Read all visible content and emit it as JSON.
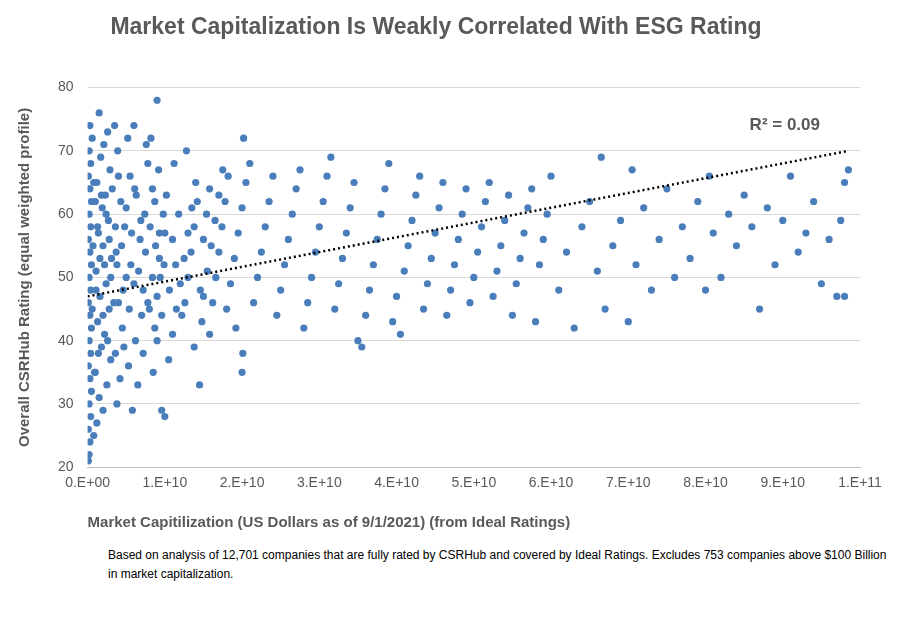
{
  "chart_data": {
    "type": "scatter",
    "title": "Market Capitalization Is Weakly Correlated With ESG Rating",
    "x_label": "Market Capitilization (US Dollars as of 9/1/2021) (from Ideal Ratings)",
    "y_label": "Overall CSRHub Rating (equal weighted profile)",
    "annotations": [
      "R² = 0.09"
    ],
    "footnote": "Based on analysis of 12,701 companies that are fully rated by CSRHub and covered by Ideal Ratings. Excludes 753 companies above $100 Billion in market capitalization.",
    "xlim": [
      0,
      100000000000.0
    ],
    "xticks": [
      {
        "value": 0,
        "label": "0.E+00"
      },
      {
        "value": 10000000000.0,
        "label": "1.E+10"
      },
      {
        "value": 20000000000.0,
        "label": "2.E+10"
      },
      {
        "value": 30000000000.0,
        "label": "3.E+10"
      },
      {
        "value": 40000000000.0,
        "label": "4.E+10"
      },
      {
        "value": 50000000000.0,
        "label": "5.E+10"
      },
      {
        "value": 60000000000.0,
        "label": "6.E+10"
      },
      {
        "value": 70000000000.0,
        "label": "7.E+10"
      },
      {
        "value": 80000000000.0,
        "label": "8.E+10"
      },
      {
        "value": 90000000000.0,
        "label": "9.E+10"
      },
      {
        "value": 100000000000.0,
        "label": "1.E+11"
      }
    ],
    "ylim": [
      20,
      80
    ],
    "yticks": [
      20,
      30,
      40,
      50,
      60,
      70,
      80
    ],
    "grid": "y",
    "series": [
      {
        "type": "scatter",
        "marker": "circle",
        "color": "#4a7ebb",
        "x": [
          100000000.0,
          200000000.0,
          300000000.0,
          100000000.0,
          400000000.0,
          200000000.0,
          500000000.0,
          300000000.0,
          100000000.0,
          400000000.0,
          200000000.0,
          500000000.0,
          300000000.0,
          100000000.0,
          400000000.0,
          200000000.0,
          500000000.0,
          300000000.0,
          100000000.0,
          400000000.0,
          200000000.0,
          500000000.0,
          300000000.0,
          100000000.0,
          400000000.0,
          200000000.0,
          600000000.0,
          300000000.0,
          1500000000.0,
          800000000.0,
          1200000000.0,
          2000000000.0,
          1500000000.0,
          2500000000.0,
          1000000000.0,
          3000000000.0,
          1800000000.0,
          2200000000.0,
          1300000000.0,
          2800000000.0,
          1600000000.0,
          2400000000.0,
          1100000000.0,
          3100000000.0,
          2000000000.0,
          1400000000.0,
          2700000000.0,
          1900000000.0,
          2300000000.0,
          1200000000.0,
          2900000000.0,
          1700000000.0,
          2100000000.0,
          2600000000.0,
          3500000000.0,
          1000000000.0,
          3800000000.0,
          4200000000.0,
          3600000000.0,
          4500000000.0,
          4000000000.0,
          5000000000.0,
          3700000000.0,
          4800000000.0,
          4300000000.0,
          5500000000.0,
          3900000000.0,
          5200000000.0,
          6000000000.0,
          4600000000.0,
          5800000000.0,
          6500000000.0,
          5300000000.0,
          6200000000.0,
          7000000000.0,
          5600000000.0,
          6800000000.0,
          7400000000.0,
          6100000000.0,
          7800000000.0,
          8200000000.0,
          7200000000.0,
          8500000000.0,
          9000000000.0,
          8000000000.0,
          9400000000.0,
          8800000000.0,
          9800000000.0,
          8400000000.0,
          9200000000.0,
          9600000000.0,
          10000000000.0,
          9000000000.0,
          7600000000.0,
          8700000000.0,
          9300000000.0,
          10000000000.0,
          10500000000.0,
          11000000000.0,
          11500000000.0,
          12000000000.0,
          12500000000.0,
          13000000000.0,
          13500000000.0,
          14000000000.0,
          11200000000.0,
          12800000000.0,
          14500000000.0,
          13800000000.0,
          14800000000.0,
          15000000000.0,
          15500000000.0,
          16000000000.0,
          16500000000.0,
          17000000000.0,
          17500000000.0,
          15800000000.0,
          18000000000.0,
          18500000000.0,
          19000000000.0,
          19500000000.0,
          20000000000.0,
          20500000000.0,
          21000000000.0,
          20200000000.0,
          20000000000.0,
          20100000000.0,
          19200000000.0,
          21500000000.0,
          22000000000.0,
          22500000000.0,
          23000000000.0,
          23500000000.0,
          24000000000.0,
          24500000000.0,
          25000000000.0,
          25500000000.0,
          26000000000.0,
          26500000000.0,
          27000000000.0,
          27500000000.0,
          28000000000.0,
          28500000000.0,
          29000000000.0,
          29500000000.0,
          30000000000.0,
          30500000000.0,
          31000000000.0,
          31500000000.0,
          32000000000.0,
          32500000000.0,
          33000000000.0,
          33500000000.0,
          34000000000.0,
          34500000000.0,
          35000000000.0,
          35500000000.0,
          36000000000.0,
          36500000000.0,
          37000000000.0,
          37500000000.0,
          38000000000.0,
          38500000000.0,
          39000000000.0,
          39500000000.0,
          40000000000.0,
          40500000000.0,
          41000000000.0,
          41500000000.0,
          42000000000.0,
          42500000000.0,
          43000000000.0,
          43500000000.0,
          44000000000.0,
          44500000000.0,
          45000000000.0,
          45500000000.0,
          46000000000.0,
          46500000000.0,
          47000000000.0,
          47500000000.0,
          48000000000.0,
          48500000000.0,
          49000000000.0,
          49500000000.0,
          50000000000.0,
          50500000000.0,
          51000000000.0,
          51500000000.0,
          52000000000.0,
          52500000000.0,
          53000000000.0,
          53500000000.0,
          54000000000.0,
          54500000000.0,
          55000000000.0,
          55500000000.0,
          56000000000.0,
          56500000000.0,
          57000000000.0,
          57500000000.0,
          58000000000.0,
          58500000000.0,
          59000000000.0,
          59500000000.0,
          60000000000.0,
          61000000000.0,
          62000000000.0,
          63000000000.0,
          64000000000.0,
          65000000000.0,
          66000000000.0,
          66500000000.0,
          67000000000.0,
          68000000000.0,
          69000000000.0,
          70000000000.0,
          70500000000.0,
          71000000000.0,
          72000000000.0,
          73000000000.0,
          74000000000.0,
          75000000000.0,
          76000000000.0,
          77000000000.0,
          78000000000.0,
          79000000000.0,
          80000000000.0,
          80500000000.0,
          81000000000.0,
          82000000000.0,
          83000000000.0,
          84000000000.0,
          85000000000.0,
          86000000000.0,
          87000000000.0,
          88000000000.0,
          89000000000.0,
          90000000000.0,
          91000000000.0,
          92000000000.0,
          93000000000.0,
          94000000000.0,
          95000000000.0,
          96000000000.0,
          97000000000.0,
          97500000000.0,
          98000000000.0,
          98500000000.0,
          98000000000.0,
          600000000.0,
          700000000.0,
          800000000.0,
          900000000.0,
          1100000000.0,
          1300000000.0,
          1400000000.0,
          1600000000.0,
          1800000000.0,
          2000000000.0,
          2200000000.0,
          2400000000.0,
          2600000000.0,
          2800000000.0,
          3000000000.0,
          3200000000.0,
          3400000000.0,
          3600000000.0,
          3800000000.0,
          4000000000.0,
          4400000000.0,
          4700000000.0,
          5000000000.0,
          5400000000.0,
          5700000000.0,
          6000000000.0,
          6300000000.0,
          6600000000.0,
          6900000000.0,
          7200000000.0,
          7500000000.0,
          7800000000.0,
          8100000000.0,
          8400000000.0,
          8700000000.0,
          9000000000.0,
          9300000000.0,
          9600000000.0,
          9900000000.0,
          10200000000.0,
          10600000000.0,
          11000000000.0,
          11400000000.0,
          11800000000.0,
          12200000000.0,
          12600000000.0,
          13000000000.0,
          13400000000.0,
          13800000000.0,
          14200000000.0,
          14600000000.0,
          15000000000.0,
          15400000000.0,
          15800000000.0,
          16200000000.0,
          16600000000.0,
          17000000000.0,
          17400000000.0,
          17800000000.0,
          18200000000.0
        ],
        "values": [
          21,
          22,
          24,
          26,
          28,
          30,
          32,
          34,
          36,
          38,
          40,
          42,
          44,
          46,
          48,
          50,
          52,
          54,
          56,
          58,
          60,
          62,
          64,
          66,
          68,
          70,
          72,
          74,
          76,
          25,
          27,
          29,
          31,
          33,
          35,
          37,
          39,
          41,
          43,
          45,
          47,
          49,
          51,
          53,
          55,
          57,
          59,
          61,
          63,
          65,
          67,
          69,
          71,
          73,
          74,
          62,
          30,
          34,
          38,
          42,
          46,
          50,
          54,
          58,
          62,
          66,
          70,
          72,
          74,
          48,
          29,
          33,
          36,
          40,
          44,
          52,
          56,
          60,
          64,
          68,
          72,
          48,
          35,
          40,
          45,
          50,
          55,
          60,
          64,
          67,
          29,
          28,
          78,
          71,
          42,
          53,
          57,
          37,
          41,
          45,
          49,
          53,
          57,
          61,
          65,
          68,
          70,
          33,
          39,
          43,
          47,
          51,
          55,
          59,
          63,
          67,
          41,
          45,
          49,
          53,
          57,
          61,
          65,
          68,
          72,
          35,
          38,
          42,
          46,
          50,
          54,
          58,
          62,
          66,
          44,
          48,
          52,
          56,
          60,
          64,
          67,
          42,
          46,
          50,
          54,
          58,
          62,
          66,
          69,
          45,
          49,
          53,
          57,
          61,
          65,
          40,
          39,
          44,
          48,
          52,
          56,
          60,
          64,
          68,
          43,
          47,
          41,
          51,
          55,
          59,
          63,
          66,
          45,
          49,
          53,
          57,
          61,
          65,
          44,
          48,
          52,
          56,
          60,
          64,
          46,
          50,
          54,
          58,
          62,
          65,
          47,
          51,
          55,
          59,
          63,
          44,
          49,
          53,
          57,
          61,
          64,
          43,
          52,
          56,
          60,
          66,
          48,
          54,
          42,
          58,
          62,
          51,
          69,
          45,
          55,
          59,
          43,
          67,
          52,
          61,
          48,
          56,
          64,
          50,
          58,
          53,
          62,
          48,
          66,
          57,
          50,
          60,
          55,
          63,
          58,
          45,
          61,
          52,
          59,
          66,
          54,
          57,
          62,
          49,
          56,
          47,
          59,
          65,
          67,
          47,
          45,
          55,
          65,
          35,
          48,
          58,
          38,
          53,
          63,
          44,
          52,
          60,
          40,
          56,
          50,
          64,
          46,
          58,
          52,
          66,
          55,
          39,
          61,
          45,
          57,
          49,
          63,
          51,
          59,
          38,
          54,
          46,
          58,
          50,
          62,
          47,
          57,
          44,
          52,
          63,
          48,
          56,
          52,
          60,
          44,
          46,
          50,
          54,
          58,
          62,
          48,
          56,
          60,
          64,
          46,
          50,
          54,
          58,
          62,
          66
        ]
      },
      {
        "type": "line",
        "line_style": "dotted",
        "color": "#000000",
        "x": [
          0,
          98500000000.0
        ],
        "values": [
          47,
          70
        ]
      }
    ]
  }
}
